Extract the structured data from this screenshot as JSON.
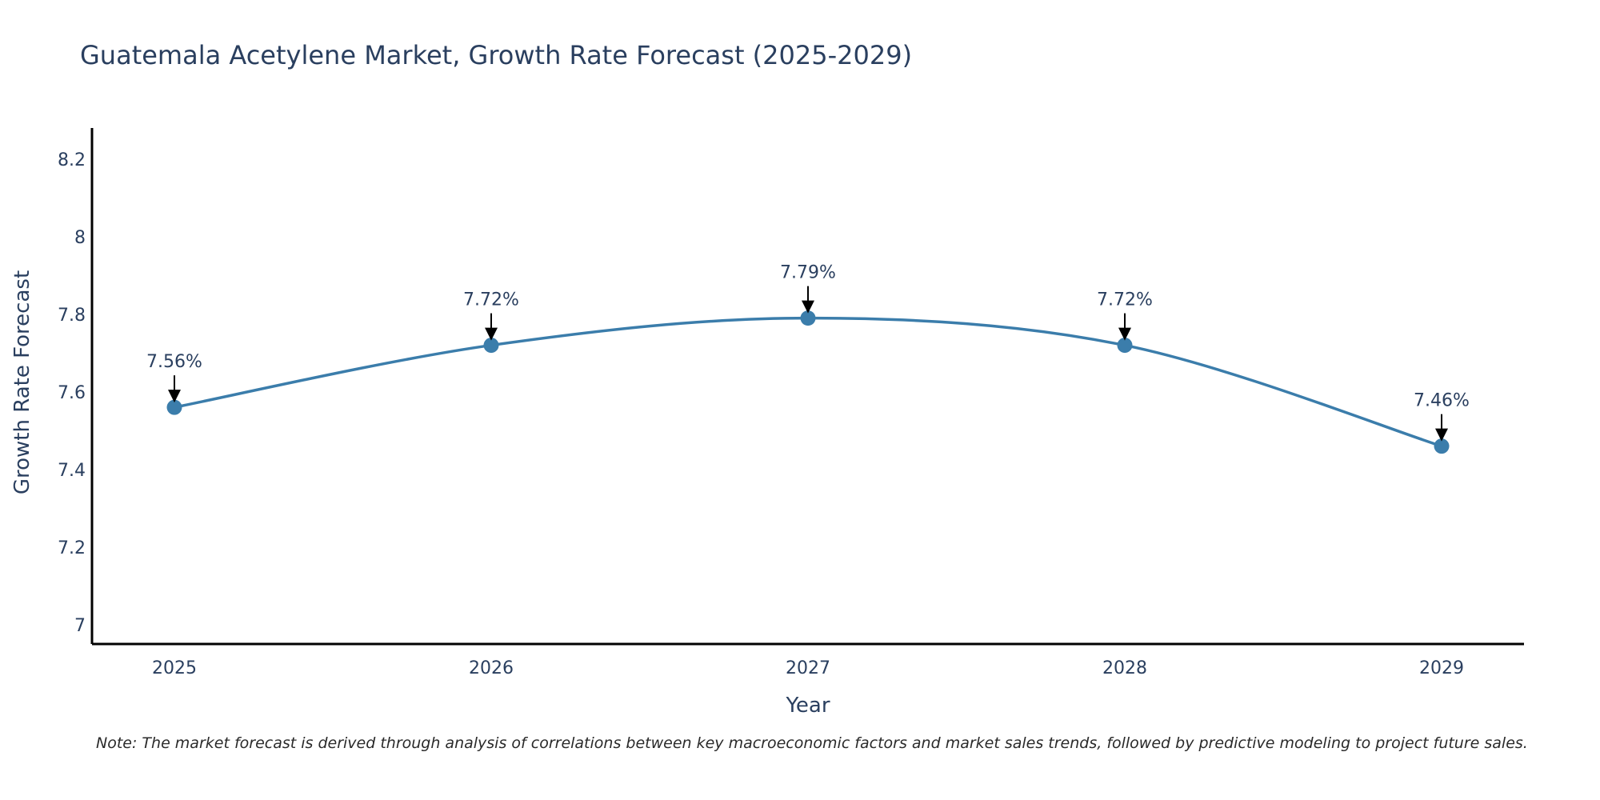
{
  "chart_data": {
    "type": "line",
    "title": "Guatemala Acetylene Market, Growth Rate Forecast (2025-2029)",
    "xlabel": "Year",
    "ylabel": "Growth Rate Forecast",
    "categories": [
      "2025",
      "2026",
      "2027",
      "2028",
      "2029"
    ],
    "values": [
      7.56,
      7.72,
      7.79,
      7.72,
      7.46
    ],
    "data_labels": [
      "7.56%",
      "7.72%",
      "7.79%",
      "7.72%",
      "7.46%"
    ],
    "ylim": [
      6.95,
      8.28
    ],
    "yticks": [
      7,
      7.2,
      7.4,
      7.6,
      7.8,
      8,
      8.2
    ],
    "ytick_labels": [
      "7",
      "7.2",
      "7.4",
      "7.6",
      "7.8",
      "8",
      "8.2"
    ],
    "line_shape": "spline",
    "grid": false,
    "series_color": "#3b7dab",
    "note": "Note: The market forecast is derived through analysis of correlations between key macroeconomic factors and market sales trends, followed by predictive modeling to project future sales."
  }
}
